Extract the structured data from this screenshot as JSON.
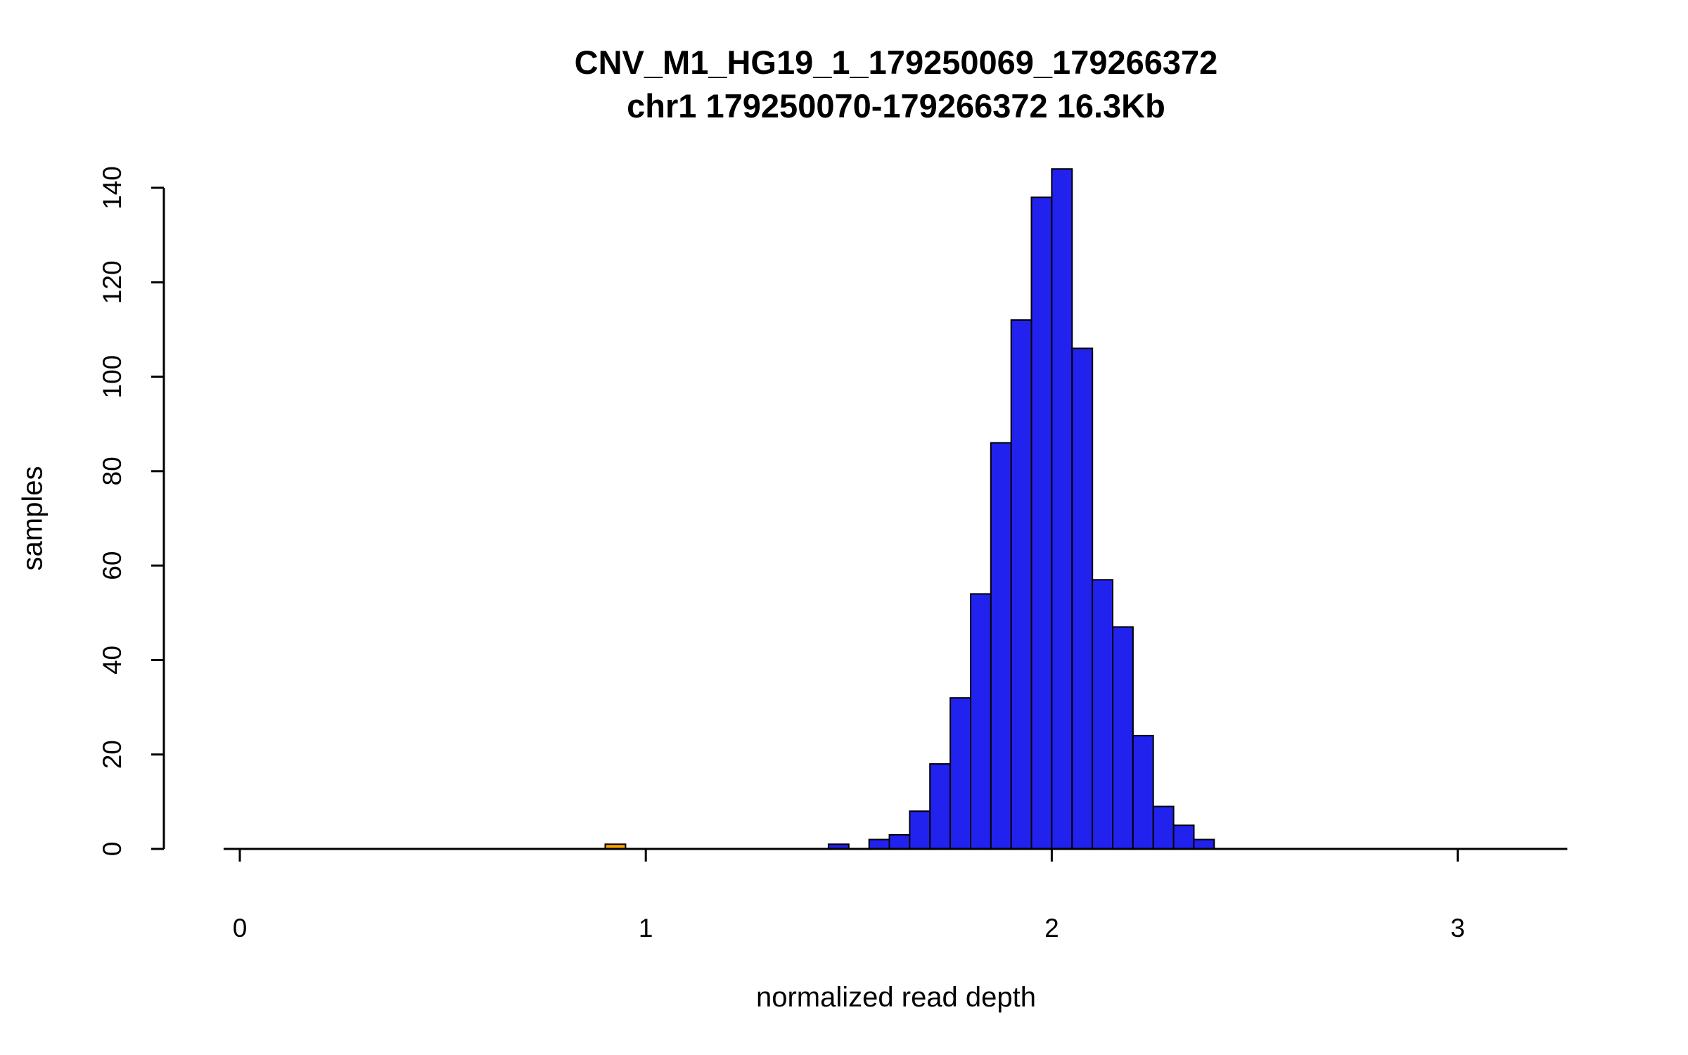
{
  "chart_data": {
    "type": "bar",
    "subtype": "histogram",
    "title": "CNV_M1_HG19_1_179250069_179266372",
    "subtitle": "chr1 179250070-179266372 16.3Kb",
    "xlabel": "normalized read depth",
    "ylabel": "samples",
    "x_ticks": [
      0,
      1,
      2,
      3
    ],
    "y_ticks": [
      0,
      20,
      40,
      60,
      80,
      100,
      120,
      140
    ],
    "xlim": [
      -0.04,
      3.27
    ],
    "ylim": [
      0,
      144
    ],
    "bin_width": 0.05,
    "legend": "none",
    "grid": false,
    "colors": {
      "bar_fill": "#2222ee",
      "bar_stroke": "#000000",
      "highlight_fill": "#ffa500",
      "axis": "#000000",
      "background": "#ffffff"
    },
    "bars": [
      {
        "x": 0.9,
        "count": 1,
        "highlight": true
      },
      {
        "x": 1.45,
        "count": 1
      },
      {
        "x": 1.55,
        "count": 2
      },
      {
        "x": 1.6,
        "count": 3
      },
      {
        "x": 1.65,
        "count": 8
      },
      {
        "x": 1.7,
        "count": 18
      },
      {
        "x": 1.75,
        "count": 32
      },
      {
        "x": 1.8,
        "count": 54
      },
      {
        "x": 1.85,
        "count": 86
      },
      {
        "x": 1.9,
        "count": 112
      },
      {
        "x": 1.95,
        "count": 138
      },
      {
        "x": 2.0,
        "count": 144
      },
      {
        "x": 2.05,
        "count": 106
      },
      {
        "x": 2.1,
        "count": 57
      },
      {
        "x": 2.15,
        "count": 47
      },
      {
        "x": 2.2,
        "count": 24
      },
      {
        "x": 2.25,
        "count": 9
      },
      {
        "x": 2.3,
        "count": 5
      },
      {
        "x": 2.35,
        "count": 2
      }
    ]
  }
}
